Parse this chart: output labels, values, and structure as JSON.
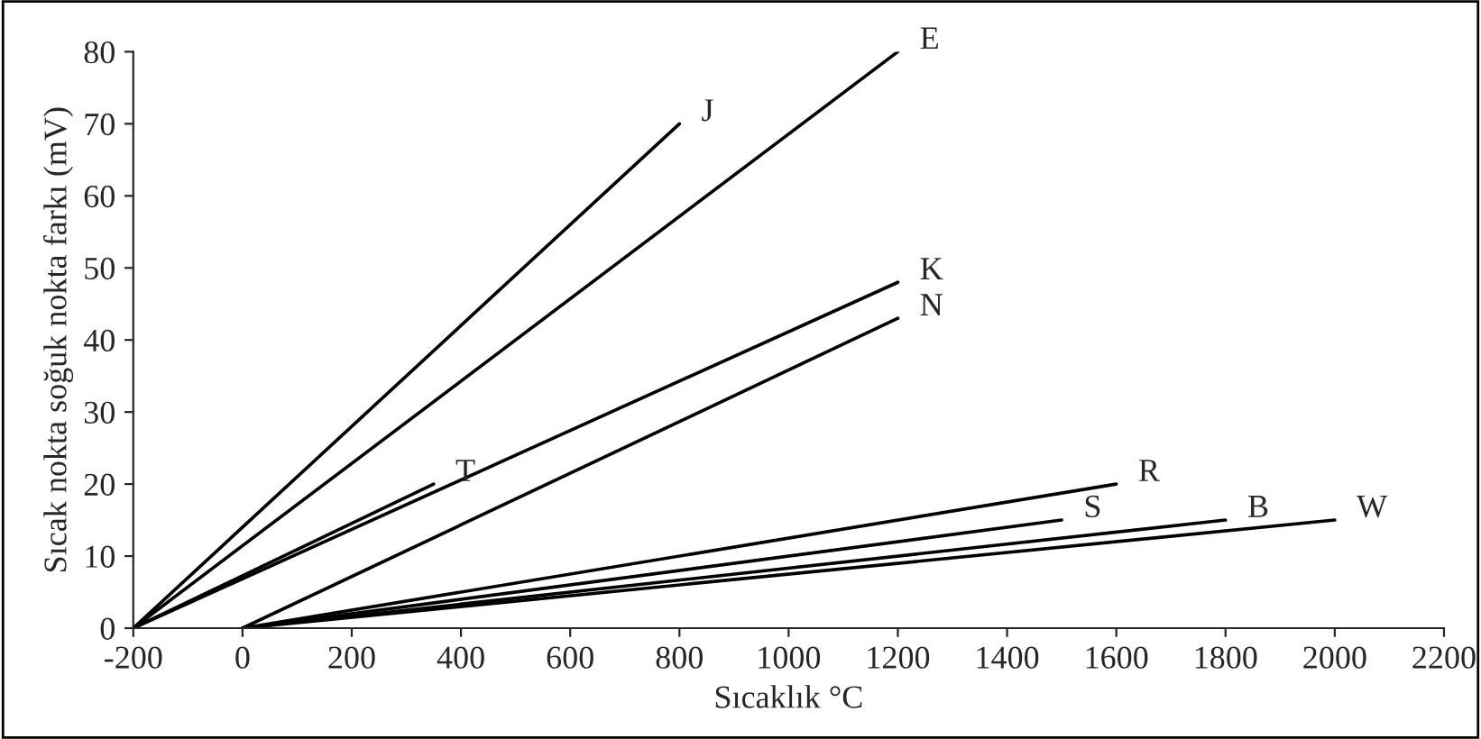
{
  "chart_data": {
    "type": "line",
    "xlabel": "Sıcaklık °C",
    "ylabel": "Sıcak nokta soğuk nokta farkı (mV)",
    "xlim": [
      -200,
      2200
    ],
    "ylim": [
      0,
      80
    ],
    "xticks": [
      -200,
      0,
      200,
      400,
      600,
      800,
      1000,
      1200,
      1400,
      1600,
      1800,
      2000,
      2200
    ],
    "yticks": [
      0,
      10,
      20,
      30,
      40,
      50,
      60,
      70,
      80
    ],
    "grid": false,
    "legend": false,
    "marker": "none",
    "line_style": "solid",
    "series": [
      {
        "name": "J",
        "color": "#000000",
        "x": [
          -200,
          800
        ],
        "values": [
          0,
          70
        ]
      },
      {
        "name": "E",
        "color": "#000000",
        "x": [
          -200,
          1200
        ],
        "values": [
          0,
          80
        ]
      },
      {
        "name": "K",
        "color": "#000000",
        "x": [
          -200,
          1200
        ],
        "values": [
          0,
          48
        ]
      },
      {
        "name": "N",
        "color": "#000000",
        "x": [
          0,
          1200
        ],
        "values": [
          0,
          43
        ]
      },
      {
        "name": "T",
        "color": "#000000",
        "x": [
          -200,
          350
        ],
        "values": [
          0,
          20
        ]
      },
      {
        "name": "R",
        "color": "#000000",
        "x": [
          0,
          1600
        ],
        "values": [
          0,
          20
        ]
      },
      {
        "name": "S",
        "color": "#000000",
        "x": [
          0,
          1500
        ],
        "values": [
          0,
          15
        ]
      },
      {
        "name": "B",
        "color": "#000000",
        "x": [
          0,
          1800
        ],
        "values": [
          0,
          15
        ]
      },
      {
        "name": "W",
        "color": "#000000",
        "x": [
          0,
          2000
        ],
        "values": [
          0,
          15
        ]
      }
    ]
  }
}
